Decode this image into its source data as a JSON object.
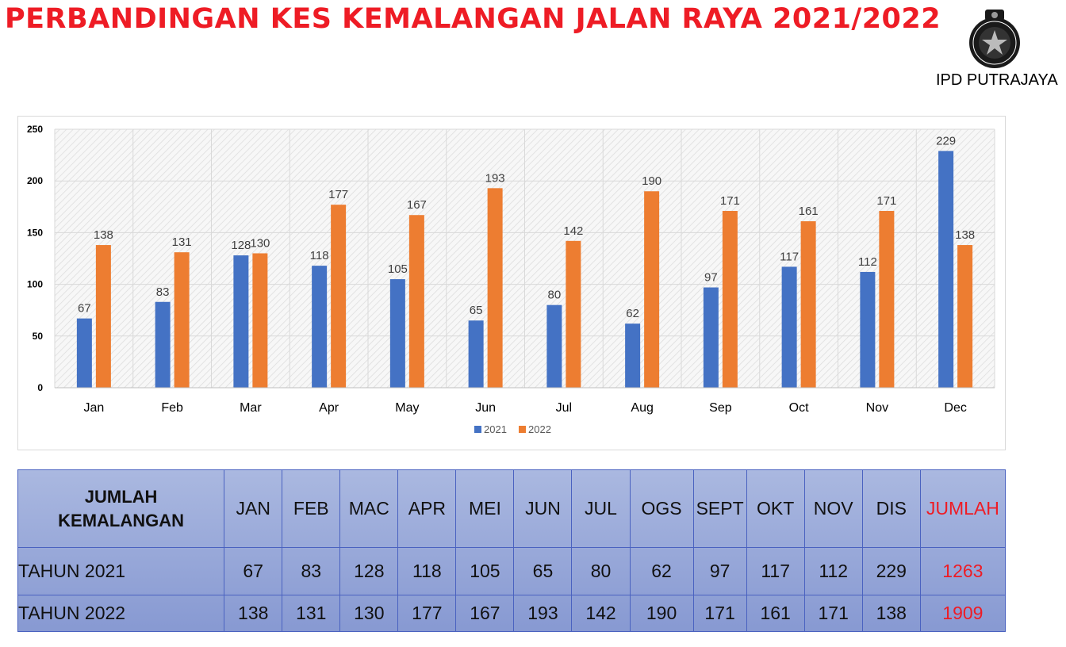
{
  "title": "PERBANDINGAN KES KEMALANGAN JALAN RAYA 2021/2022",
  "org_label": "IPD PUTRAJAYA",
  "logo_icon": "police-crest-icon",
  "colors": {
    "s2021": "#4472c4",
    "s2022": "#ed7d31",
    "title": "#ee1c25"
  },
  "chart_data": {
    "type": "bar",
    "categories": [
      "Jan",
      "Feb",
      "Mar",
      "Apr",
      "May",
      "Jun",
      "Jul",
      "Aug",
      "Sep",
      "Oct",
      "Nov",
      "Dec"
    ],
    "series": [
      {
        "name": "2021",
        "values": [
          67,
          83,
          128,
          118,
          105,
          65,
          80,
          62,
          97,
          117,
          112,
          229
        ]
      },
      {
        "name": "2022",
        "values": [
          138,
          131,
          130,
          177,
          167,
          193,
          142,
          190,
          171,
          161,
          171,
          138
        ]
      }
    ],
    "yticks": [
      0,
      50,
      100,
      150,
      200,
      250
    ],
    "ylim": [
      0,
      250
    ],
    "legend": "bottom",
    "grid": true
  },
  "table": {
    "corner_line1": "JUMLAH",
    "corner_line2": "KEMALANGAN",
    "months": [
      "JAN",
      "FEB",
      "MAC",
      "APR",
      "MEI",
      "JUN",
      "JUL",
      "OGS",
      "SEPT",
      "OKT",
      "NOV",
      "DIS"
    ],
    "total_header": "JUMLAH",
    "rows": [
      {
        "label": "TAHUN 2021",
        "values": [
          "67",
          "83",
          "128",
          "118",
          "105",
          "65",
          "80",
          "62",
          "97",
          "117",
          "112",
          "229"
        ],
        "total": "1263"
      },
      {
        "label": "TAHUN 2022",
        "values": [
          "138",
          "131",
          "130",
          "177",
          "167",
          "193",
          "142",
          "190",
          "171",
          "161",
          "171",
          "138"
        ],
        "total": "1909"
      }
    ]
  }
}
